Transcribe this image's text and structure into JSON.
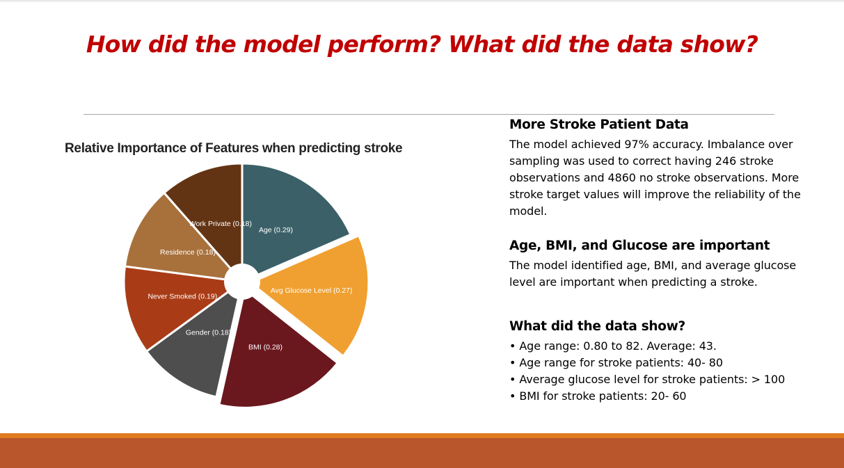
{
  "slide": {
    "title": "How did the model perform? What did the data show?"
  },
  "chart_data": {
    "type": "pie",
    "title": "Relative Importance of Features when predicting stroke",
    "donut_hole": true,
    "slices": [
      {
        "label": "Age (0.29)",
        "value": 0.29,
        "color": "#3b6068",
        "text_color": "#ffffff",
        "exploded": false
      },
      {
        "label": "Avg Glucose Level (0.27)",
        "value": 0.27,
        "color": "#f0a030",
        "text_color": "#ffffff",
        "exploded": true
      },
      {
        "label": "BMI (0.28)",
        "value": 0.28,
        "color": "#6a171e",
        "text_color": "#ffffff",
        "exploded": true
      },
      {
        "label": "Gender (0.18)",
        "value": 0.18,
        "color": "#4e4e4e",
        "text_color": "#ffffff",
        "exploded": false
      },
      {
        "label": "Never Smoked (0.19)",
        "value": 0.19,
        "color": "#a93c17",
        "text_color": "#ffffff",
        "exploded": false
      },
      {
        "label": "Residence (0.18)",
        "value": 0.18,
        "color": "#a8713c",
        "text_color": "#ffffff",
        "exploded": false
      },
      {
        "label": "Work Private (0.18)",
        "value": 0.18,
        "color": "#633414",
        "text_color": "#ffffff",
        "exploded": false
      }
    ]
  },
  "sections": [
    {
      "heading": "More Stroke Patient Data",
      "body": "The model achieved 97% accuracy.  Imbalance over sampling was used to correct having 246 stroke observations and 4860 no stroke observations.   More stroke target values will improve the reliability of the model."
    },
    {
      "heading": "Age, BMI, and Glucose are important",
      "body": "The model identified age, BMI, and average glucose level are important when predicting a stroke."
    },
    {
      "heading": "What did the data show?",
      "bullets": [
        "Age range: 0.80 to 82.  Average: 43.",
        "Age range for stroke patients:  40- 80",
        "Average glucose level for stroke patients: >  100",
        "BMI for stroke patients:  20- 60"
      ]
    }
  ],
  "theme": {
    "title_color": "#c00000",
    "footer_orange": "#e07b1f",
    "footer_band": "#b9562b"
  }
}
